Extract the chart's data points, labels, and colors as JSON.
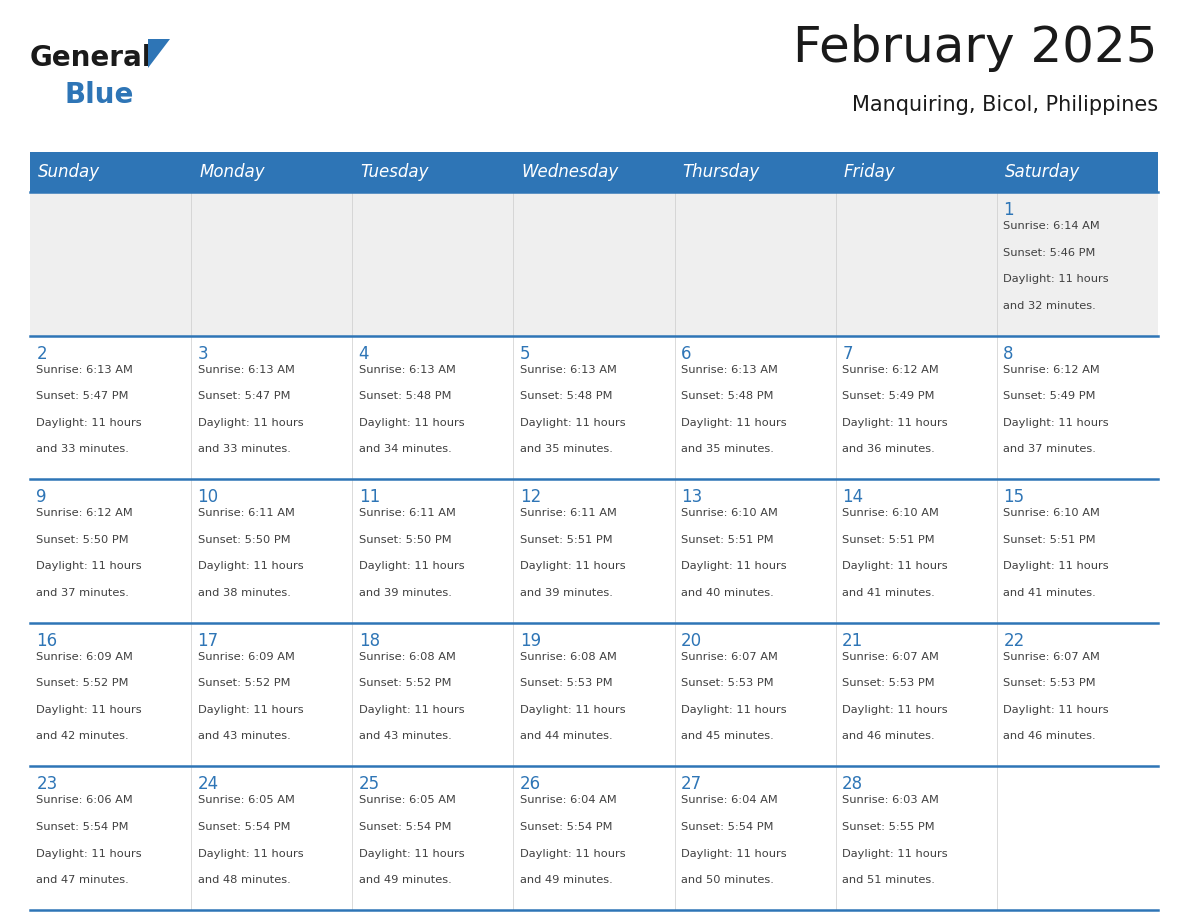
{
  "title": "February 2025",
  "subtitle": "Manquiring, Bicol, Philippines",
  "header_bg": "#2E75B6",
  "header_text_color": "#FFFFFF",
  "cell_bg_light": "#EFEFEF",
  "cell_bg_white": "#FFFFFF",
  "day_number_color": "#2E75B6",
  "text_color": "#404040",
  "border_color": "#2E75B6",
  "days_of_week": [
    "Sunday",
    "Monday",
    "Tuesday",
    "Wednesday",
    "Thursday",
    "Friday",
    "Saturday"
  ],
  "calendar_data": [
    [
      null,
      null,
      null,
      null,
      null,
      null,
      {
        "day": "1",
        "sunrise": "6:14 AM",
        "sunset": "5:46 PM",
        "daylight_line1": "11 hours",
        "daylight_line2": "and 32 minutes."
      }
    ],
    [
      {
        "day": "2",
        "sunrise": "6:13 AM",
        "sunset": "5:47 PM",
        "daylight_line1": "11 hours",
        "daylight_line2": "and 33 minutes."
      },
      {
        "day": "3",
        "sunrise": "6:13 AM",
        "sunset": "5:47 PM",
        "daylight_line1": "11 hours",
        "daylight_line2": "and 33 minutes."
      },
      {
        "day": "4",
        "sunrise": "6:13 AM",
        "sunset": "5:48 PM",
        "daylight_line1": "11 hours",
        "daylight_line2": "and 34 minutes."
      },
      {
        "day": "5",
        "sunrise": "6:13 AM",
        "sunset": "5:48 PM",
        "daylight_line1": "11 hours",
        "daylight_line2": "and 35 minutes."
      },
      {
        "day": "6",
        "sunrise": "6:13 AM",
        "sunset": "5:48 PM",
        "daylight_line1": "11 hours",
        "daylight_line2": "and 35 minutes."
      },
      {
        "day": "7",
        "sunrise": "6:12 AM",
        "sunset": "5:49 PM",
        "daylight_line1": "11 hours",
        "daylight_line2": "and 36 minutes."
      },
      {
        "day": "8",
        "sunrise": "6:12 AM",
        "sunset": "5:49 PM",
        "daylight_line1": "11 hours",
        "daylight_line2": "and 37 minutes."
      }
    ],
    [
      {
        "day": "9",
        "sunrise": "6:12 AM",
        "sunset": "5:50 PM",
        "daylight_line1": "11 hours",
        "daylight_line2": "and 37 minutes."
      },
      {
        "day": "10",
        "sunrise": "6:11 AM",
        "sunset": "5:50 PM",
        "daylight_line1": "11 hours",
        "daylight_line2": "and 38 minutes."
      },
      {
        "day": "11",
        "sunrise": "6:11 AM",
        "sunset": "5:50 PM",
        "daylight_line1": "11 hours",
        "daylight_line2": "and 39 minutes."
      },
      {
        "day": "12",
        "sunrise": "6:11 AM",
        "sunset": "5:51 PM",
        "daylight_line1": "11 hours",
        "daylight_line2": "and 39 minutes."
      },
      {
        "day": "13",
        "sunrise": "6:10 AM",
        "sunset": "5:51 PM",
        "daylight_line1": "11 hours",
        "daylight_line2": "and 40 minutes."
      },
      {
        "day": "14",
        "sunrise": "6:10 AM",
        "sunset": "5:51 PM",
        "daylight_line1": "11 hours",
        "daylight_line2": "and 41 minutes."
      },
      {
        "day": "15",
        "sunrise": "6:10 AM",
        "sunset": "5:51 PM",
        "daylight_line1": "11 hours",
        "daylight_line2": "and 41 minutes."
      }
    ],
    [
      {
        "day": "16",
        "sunrise": "6:09 AM",
        "sunset": "5:52 PM",
        "daylight_line1": "11 hours",
        "daylight_line2": "and 42 minutes."
      },
      {
        "day": "17",
        "sunrise": "6:09 AM",
        "sunset": "5:52 PM",
        "daylight_line1": "11 hours",
        "daylight_line2": "and 43 minutes."
      },
      {
        "day": "18",
        "sunrise": "6:08 AM",
        "sunset": "5:52 PM",
        "daylight_line1": "11 hours",
        "daylight_line2": "and 43 minutes."
      },
      {
        "day": "19",
        "sunrise": "6:08 AM",
        "sunset": "5:53 PM",
        "daylight_line1": "11 hours",
        "daylight_line2": "and 44 minutes."
      },
      {
        "day": "20",
        "sunrise": "6:07 AM",
        "sunset": "5:53 PM",
        "daylight_line1": "11 hours",
        "daylight_line2": "and 45 minutes."
      },
      {
        "day": "21",
        "sunrise": "6:07 AM",
        "sunset": "5:53 PM",
        "daylight_line1": "11 hours",
        "daylight_line2": "and 46 minutes."
      },
      {
        "day": "22",
        "sunrise": "6:07 AM",
        "sunset": "5:53 PM",
        "daylight_line1": "11 hours",
        "daylight_line2": "and 46 minutes."
      }
    ],
    [
      {
        "day": "23",
        "sunrise": "6:06 AM",
        "sunset": "5:54 PM",
        "daylight_line1": "11 hours",
        "daylight_line2": "and 47 minutes."
      },
      {
        "day": "24",
        "sunrise": "6:05 AM",
        "sunset": "5:54 PM",
        "daylight_line1": "11 hours",
        "daylight_line2": "and 48 minutes."
      },
      {
        "day": "25",
        "sunrise": "6:05 AM",
        "sunset": "5:54 PM",
        "daylight_line1": "11 hours",
        "daylight_line2": "and 49 minutes."
      },
      {
        "day": "26",
        "sunrise": "6:04 AM",
        "sunset": "5:54 PM",
        "daylight_line1": "11 hours",
        "daylight_line2": "and 49 minutes."
      },
      {
        "day": "27",
        "sunrise": "6:04 AM",
        "sunset": "5:54 PM",
        "daylight_line1": "11 hours",
        "daylight_line2": "and 50 minutes."
      },
      {
        "day": "28",
        "sunrise": "6:03 AM",
        "sunset": "5:55 PM",
        "daylight_line1": "11 hours",
        "daylight_line2": "and 51 minutes."
      },
      null
    ]
  ],
  "logo_general_color": "#1a1a1a",
  "logo_blue_color": "#2E75B6",
  "logo_triangle_color": "#2E75B6"
}
